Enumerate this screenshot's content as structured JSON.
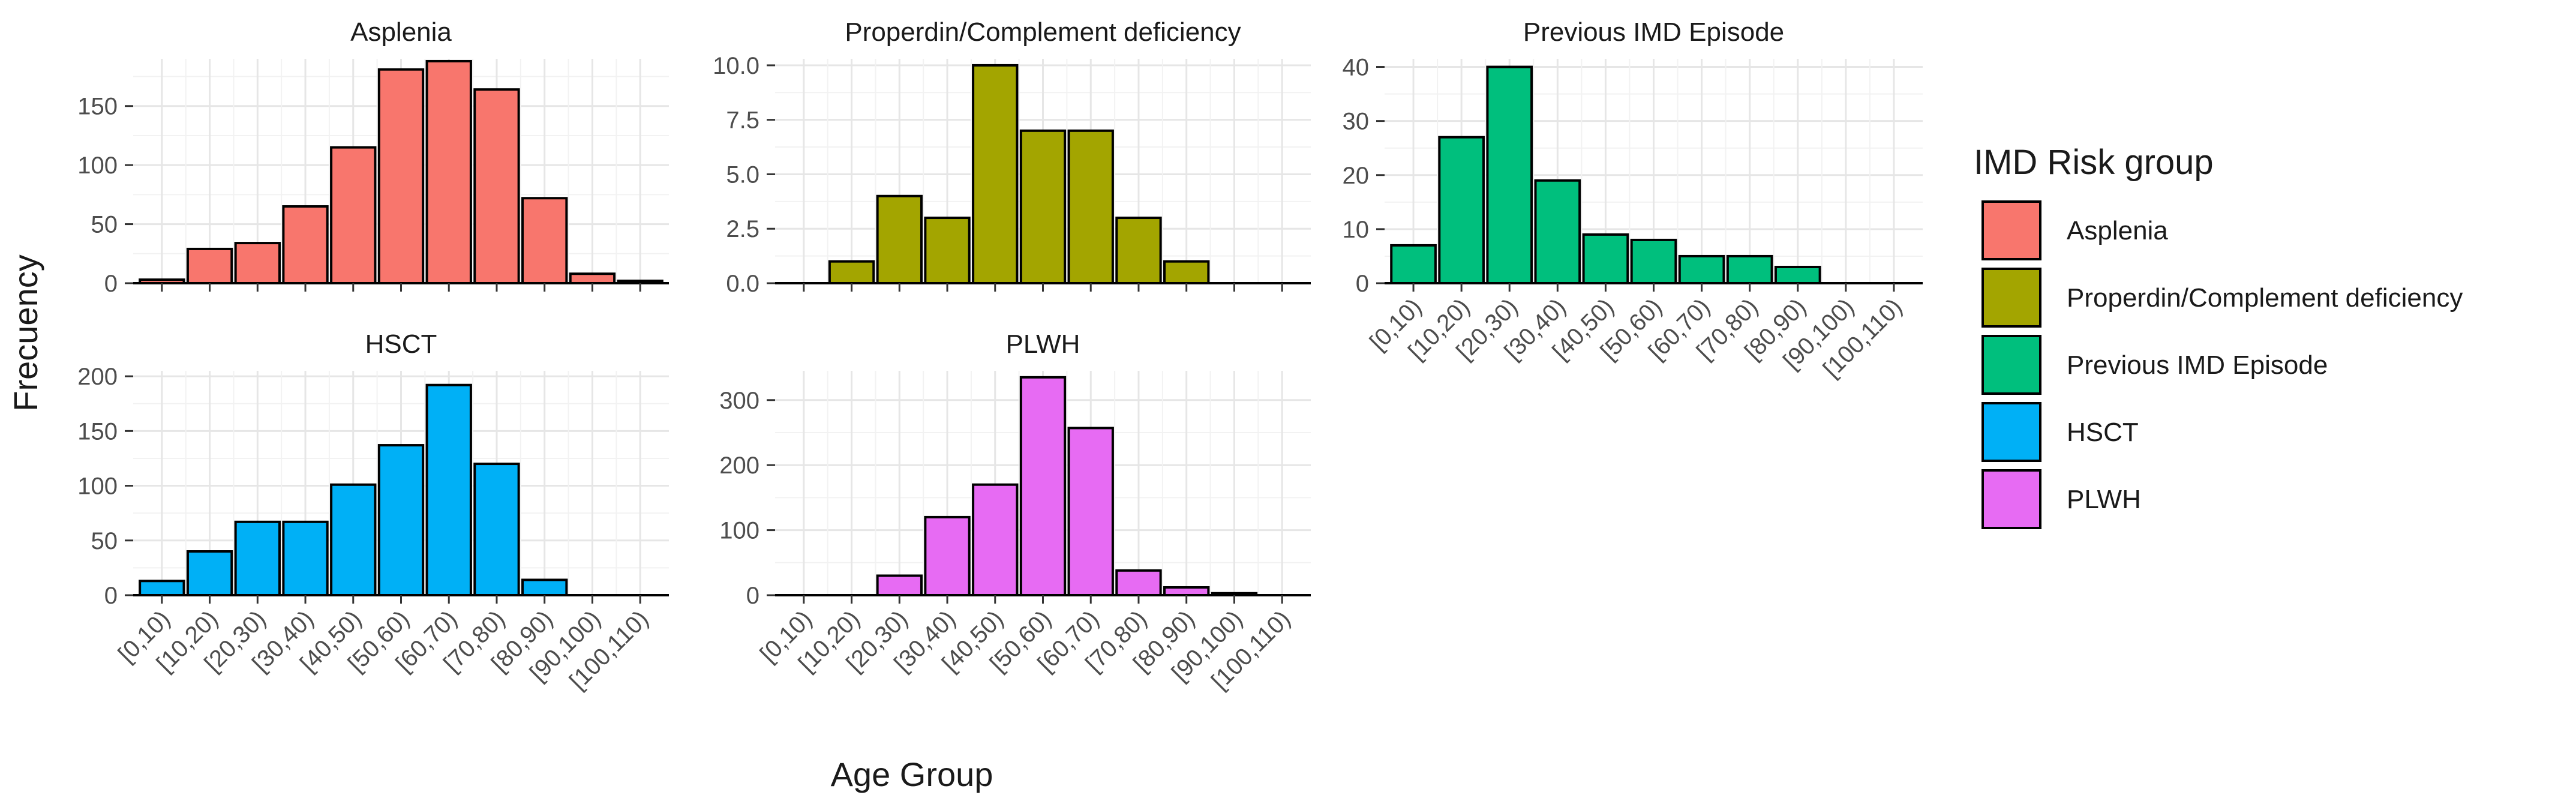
{
  "figure": {
    "ylabel": "Frecuency",
    "xlabel": "Age Group"
  },
  "legend": {
    "title": "IMD Risk group",
    "items": [
      {
        "label": "Asplenia",
        "color": "#F8766D"
      },
      {
        "label": "Properdin/Complement deficiency",
        "color": "#A3A500"
      },
      {
        "label": "Previous IMD Episode",
        "color": "#00BF7D"
      },
      {
        "label": "HSCT",
        "color": "#00B0F6"
      },
      {
        "label": "PLWH",
        "color": "#E76BF3"
      }
    ]
  },
  "chart_data": [
    {
      "type": "bar",
      "title": "Asplenia",
      "color": "#F8766D",
      "categories": [
        "[0,10)",
        "[10,20)",
        "[20,30)",
        "[30,40)",
        "[40,50)",
        "[50,60)",
        "[60,70)",
        "[70,80)",
        "[80,90)",
        "[90,100)",
        "[100,110)"
      ],
      "values": [
        3,
        29,
        34,
        65,
        115,
        181,
        188,
        164,
        72,
        8,
        2
      ],
      "yticks": [
        0,
        50,
        100,
        150
      ],
      "yticklabels": [
        "0",
        "50",
        "100",
        "150"
      ],
      "ylim": [
        0,
        190
      ],
      "xlabel": "Age Group",
      "ylabel": "Frecuency",
      "show_xticklabels": false
    },
    {
      "type": "bar",
      "title": "Properdin/Complement deficiency",
      "color": "#A3A500",
      "categories": [
        "[0,10)",
        "[10,20)",
        "[20,30)",
        "[30,40)",
        "[40,50)",
        "[50,60)",
        "[60,70)",
        "[70,80)",
        "[80,90)",
        "[90,100)",
        "[100,110)"
      ],
      "values": [
        0,
        1,
        4,
        3,
        10,
        7,
        7,
        3,
        1,
        0,
        0
      ],
      "yticks": [
        0,
        2.5,
        5,
        7.5,
        10
      ],
      "yticklabels": [
        "0.0",
        "2.5",
        "5.0",
        "7.5",
        "10.0"
      ],
      "ylim": [
        0,
        10.3
      ],
      "xlabel": "Age Group",
      "ylabel": "Frecuency",
      "show_xticklabels": false
    },
    {
      "type": "bar",
      "title": "Previous IMD Episode",
      "color": "#00BF7D",
      "categories": [
        "[0,10)",
        "[10,20)",
        "[20,30)",
        "[30,40)",
        "[40,50)",
        "[50,60)",
        "[60,70)",
        "[70,80)",
        "[80,90)",
        "[90,100)",
        "[100,110)"
      ],
      "values": [
        7,
        27,
        40,
        19,
        9,
        8,
        5,
        5,
        3,
        0,
        0
      ],
      "yticks": [
        0,
        10,
        20,
        30,
        40
      ],
      "yticklabels": [
        "0",
        "10",
        "20",
        "30",
        "40"
      ],
      "ylim": [
        0,
        41.5
      ],
      "xlabel": "Age Group",
      "ylabel": "Frecuency",
      "show_xticklabels": true
    },
    {
      "type": "bar",
      "title": "HSCT",
      "color": "#00B0F6",
      "categories": [
        "[0,10)",
        "[10,20)",
        "[20,30)",
        "[30,40)",
        "[40,50)",
        "[50,60)",
        "[60,70)",
        "[70,80)",
        "[80,90)",
        "[90,100)",
        "[100,110)"
      ],
      "values": [
        13,
        40,
        67,
        67,
        101,
        137,
        192,
        120,
        14,
        0,
        0
      ],
      "yticks": [
        0,
        50,
        100,
        150,
        200
      ],
      "yticklabels": [
        "0",
        "50",
        "100",
        "150",
        "200"
      ],
      "ylim": [
        0,
        205
      ],
      "xlabel": "Age Group",
      "ylabel": "Frecuency",
      "show_xticklabels": true
    },
    {
      "type": "bar",
      "title": "PLWH",
      "color": "#E76BF3",
      "categories": [
        "[0,10)",
        "[10,20)",
        "[20,30)",
        "[30,40)",
        "[40,50)",
        "[50,60)",
        "[60,70)",
        "[70,80)",
        "[80,90)",
        "[90,100)",
        "[100,110)"
      ],
      "values": [
        0,
        0,
        30,
        120,
        170,
        335,
        257,
        38,
        12,
        3,
        0
      ],
      "yticks": [
        0,
        100,
        200,
        300
      ],
      "yticklabels": [
        "0",
        "100",
        "200",
        "300"
      ],
      "ylim": [
        0,
        345
      ],
      "xlabel": "Age Group",
      "ylabel": "Frecuency",
      "show_xticklabels": true
    }
  ]
}
